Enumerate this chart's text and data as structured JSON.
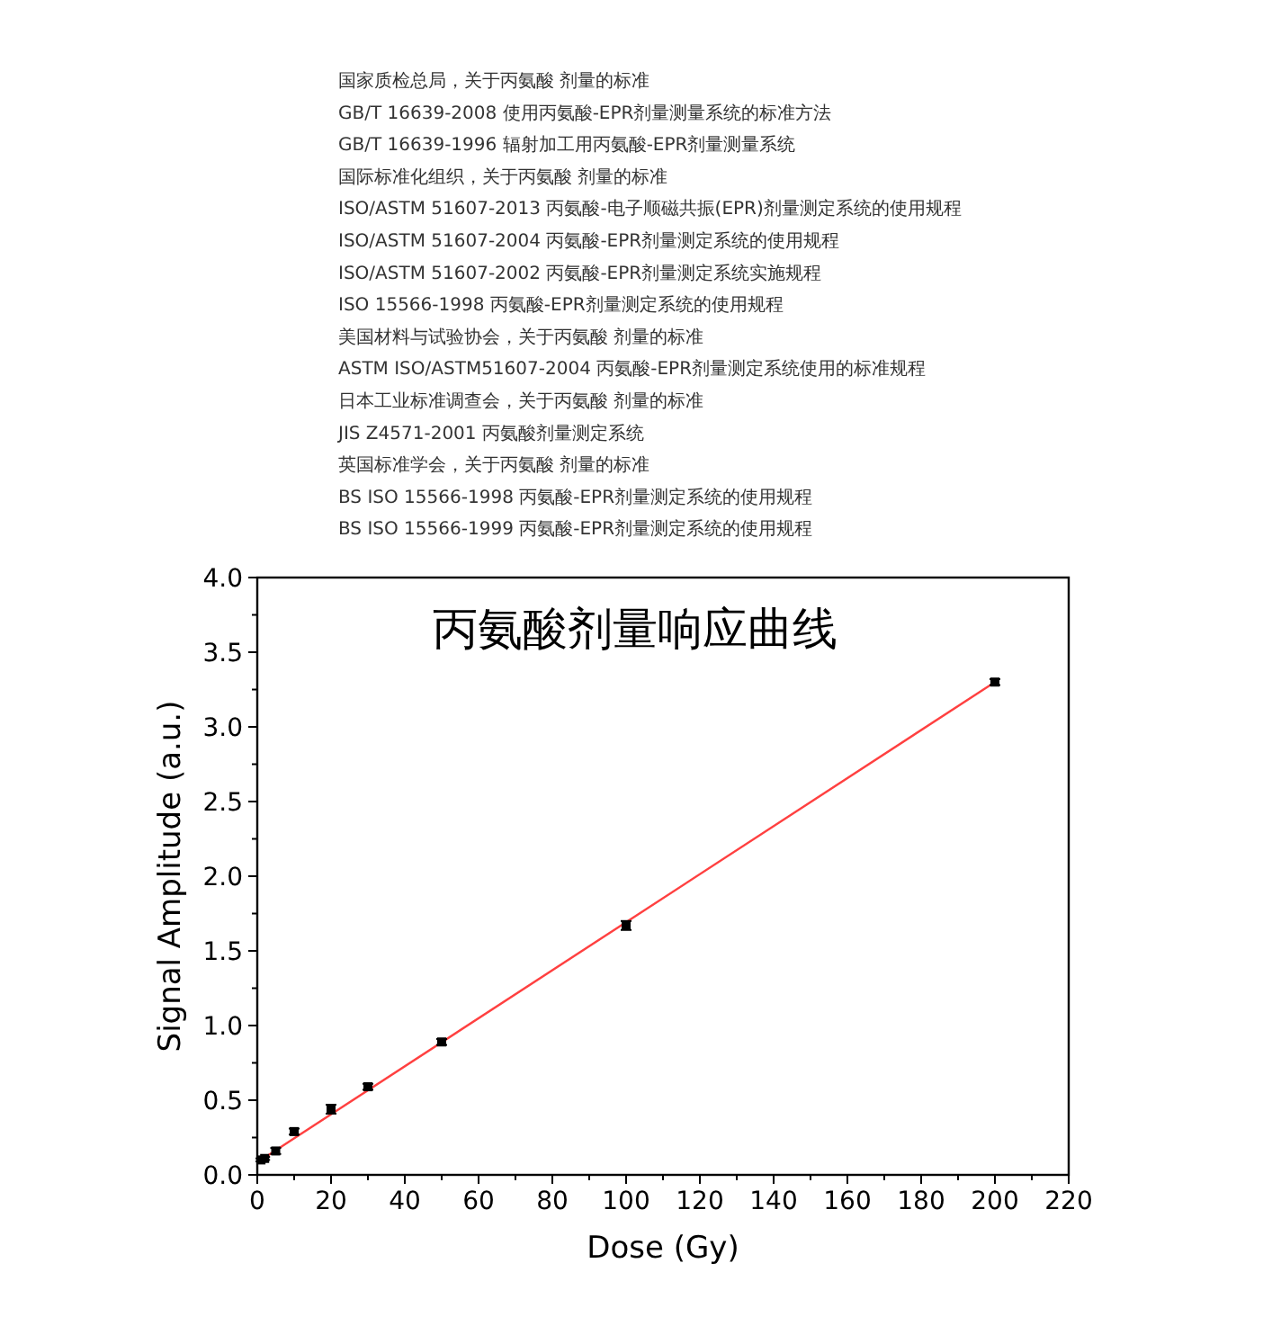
{
  "chart_data": {
    "type": "scatter",
    "title": "丙氨酸剂量响应曲线",
    "xlabel": "Dose (Gy)",
    "ylabel": "Signal Amplitude (a.u.)",
    "annotations": [
      "国家质检总局，关于丙氨酸 剂量的标准",
      "GB/T 16639-2008 使用丙氨酸-EPR剂量测量系统的标准方法",
      "GB/T 16639-1996 辐射加工用丙氨酸-EPR剂量测量系统",
      "国际标准化组织，关于丙氨酸 剂量的标准",
      "ISO/ASTM 51607-2013 丙氨酸-电子顺磁共振(EPR)剂量测定系统的使用规程",
      "ISO/ASTM 51607-2004 丙氨酸-EPR剂量测定系统的使用规程",
      "ISO/ASTM 51607-2002 丙氨酸-EPR剂量测定系统实施规程",
      "ISO 15566-1998 丙氨酸-EPR剂量测定系统的使用规程",
      "美国材料与试验协会，关于丙氨酸 剂量的标准",
      "ASTM ISO/ASTM51607-2004 丙氨酸-EPR剂量测定系统使用的标准规程",
      "日本工业标准调查会，关于丙氨酸 剂量的标准",
      "JIS Z4571-2001 丙氨酸剂量测定系统",
      "英国标准学会，关于丙氨酸 剂量的标准",
      "BS ISO 15566-1998 丙氨酸-EPR剂量测定系统的使用规程",
      "BS ISO 15566-1999 丙氨酸-EPR剂量测定系统的使用规程"
    ],
    "series": [
      {
        "type": "line",
        "color": "#ff4040",
        "x": [
          1,
          200
        ],
        "values": [
          0.1,
          3.3
        ],
        "marker": "none"
      },
      {
        "color": "#000000",
        "marker": "square",
        "x": [
          1,
          2,
          5,
          10,
          20,
          30,
          50,
          100,
          200
        ],
        "values": [
          0.1,
          0.11,
          0.16,
          0.29,
          0.44,
          0.59,
          0.89,
          1.67,
          3.3
        ],
        "errors": [
          0.01,
          0.01,
          0.02,
          0.02,
          0.03,
          0.02,
          0.02,
          0.03,
          0.02
        ]
      }
    ],
    "xlim": [
      0,
      220
    ],
    "ylim": [
      0,
      4
    ],
    "xticks": [
      0,
      {
        "value": 10,
        "label": null
      },
      20,
      {
        "value": 30,
        "label": null
      },
      40,
      {
        "value": 50,
        "label": null
      },
      60,
      {
        "value": 70,
        "label": null
      },
      80,
      {
        "value": 90,
        "label": null
      },
      100,
      {
        "value": 110,
        "label": null
      },
      120,
      {
        "value": 130,
        "label": null
      },
      140,
      {
        "value": 150,
        "label": null
      },
      160,
      {
        "value": 170,
        "label": null
      },
      180,
      {
        "value": 190,
        "label": null
      },
      200,
      {
        "value": 210,
        "label": null
      },
      220
    ],
    "yticks": [
      {
        "value": 0,
        "label": "0.0"
      },
      {
        "value": 0.25,
        "label": null
      },
      {
        "value": 0.5,
        "label": "0.5"
      },
      {
        "value": 0.75,
        "label": null
      },
      {
        "value": 1,
        "label": "1.0"
      },
      {
        "value": 1.25,
        "label": null
      },
      {
        "value": 1.5,
        "label": "1.5"
      },
      {
        "value": 1.75,
        "label": null
      },
      {
        "value": 2,
        "label": "2.0"
      },
      {
        "value": 2.25,
        "label": null
      },
      {
        "value": 2.5,
        "label": "2.5"
      },
      {
        "value": 2.75,
        "label": null
      },
      {
        "value": 3,
        "label": "3.0"
      },
      {
        "value": 3.25,
        "label": null
      },
      {
        "value": 3.5,
        "label": "3.5"
      },
      {
        "value": 3.75,
        "label": null
      },
      {
        "value": 4,
        "label": "4.0"
      }
    ],
    "grid": false
  }
}
